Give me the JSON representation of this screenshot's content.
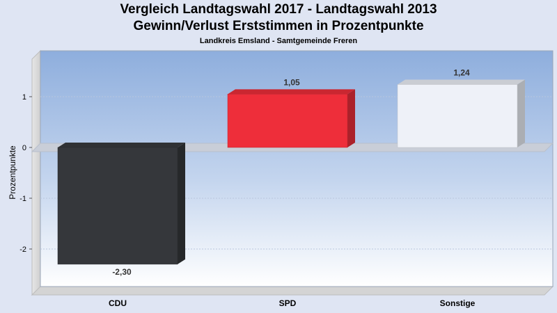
{
  "chart_data": {
    "type": "bar",
    "title": "Vergleich Landtagswahl 2017 - Landtagswahl 2013",
    "subtitle": "Gewinn/Verlust Erststimmen in Prozentpunkte",
    "caption": "Landkreis Emsland - Samtgemeinde Freren",
    "ylabel": "Prozentpunkte",
    "xlabel": "",
    "categories": [
      "CDU",
      "SPD",
      "Sonstige"
    ],
    "values": [
      -2.3,
      1.05,
      1.24
    ],
    "value_labels": [
      "-2,30",
      "1,05",
      "1,24"
    ],
    "colors": [
      "#35373b",
      "#ee2e3a",
      "#eef1f8"
    ],
    "yticks": [
      -2,
      -1,
      0,
      1
    ],
    "ytick_labels": [
      "-2",
      "-1",
      "0",
      "1"
    ],
    "ylim": [
      -2.5,
      1.6
    ],
    "grid": true,
    "legend": "none"
  }
}
